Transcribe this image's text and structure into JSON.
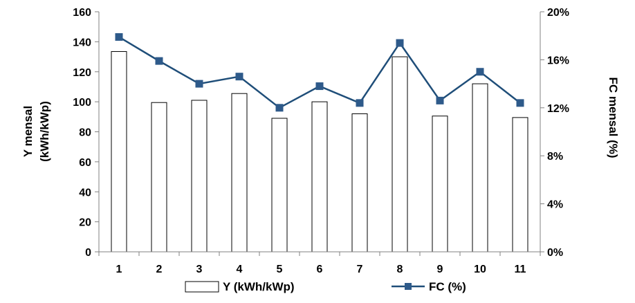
{
  "chart_data": {
    "type": "bar",
    "categories": [
      "1",
      "2",
      "3",
      "4",
      "5",
      "6",
      "7",
      "8",
      "9",
      "10",
      "11"
    ],
    "series": [
      {
        "name": "Y (kWh/kWp)",
        "type": "bar",
        "axis": "left",
        "values": [
          133.5,
          99.5,
          101,
          105.5,
          89,
          100,
          92,
          130,
          90.5,
          112,
          89.5
        ]
      },
      {
        "name": "FC (%)",
        "type": "line",
        "axis": "right",
        "values": [
          17.9,
          15.9,
          14.0,
          14.6,
          12.0,
          13.8,
          12.4,
          17.4,
          12.6,
          15.0,
          12.4
        ]
      }
    ],
    "ylabel_left": [
      "Y mensal",
      "(kWh/kWp)"
    ],
    "ylabel_right": "FC mensal (%)",
    "ylim_left": [
      0,
      160
    ],
    "yticks_left": [
      "0",
      "20",
      "40",
      "60",
      "80",
      "100",
      "120",
      "140",
      "160"
    ],
    "ylim_right": [
      0,
      20
    ],
    "yticks_right": [
      "0%",
      "4%",
      "8%",
      "12%",
      "16%",
      "20%"
    ],
    "grid": false,
    "legend": "bottom",
    "colors": {
      "bar_fill": "#ffffff",
      "bar_stroke": "#000000",
      "line": "#1f4e79",
      "marker": "#2e5a8a"
    }
  }
}
